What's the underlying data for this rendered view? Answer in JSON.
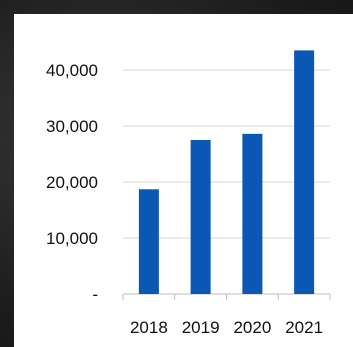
{
  "chart_data": {
    "type": "bar",
    "categories": [
      "2018",
      "2019",
      "2020",
      "2021"
    ],
    "values": [
      18700,
      27500,
      28600,
      43500
    ],
    "title": "",
    "xlabel": "",
    "ylabel": "",
    "ylim": [
      0,
      45000
    ],
    "y_ticks": [
      {
        "value": 0,
        "label": "-"
      },
      {
        "value": 10000,
        "label": "10,000"
      },
      {
        "value": 20000,
        "label": "20,000"
      },
      {
        "value": 30000,
        "label": "30,000"
      },
      {
        "value": 40000,
        "label": "40,000"
      }
    ],
    "grid": true,
    "legend": "none",
    "bar_color": "#0a58b4",
    "grid_color": "#d9d9d9"
  }
}
